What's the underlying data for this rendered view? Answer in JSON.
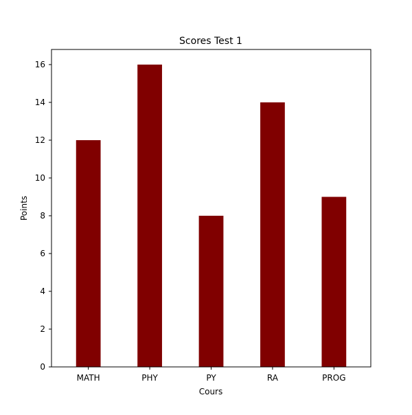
{
  "chart_data": {
    "type": "bar",
    "title": "Scores Test 1",
    "xlabel": "Cours",
    "ylabel": "Points",
    "categories": [
      "MATH",
      "PHY",
      "PY",
      "RA",
      "PROG"
    ],
    "values": [
      12,
      16,
      8,
      14,
      9
    ],
    "ylim": [
      0,
      16.8
    ],
    "yticks": [
      0,
      2,
      4,
      6,
      8,
      10,
      12,
      14,
      16
    ],
    "grid": false,
    "bar_color": "#800000"
  }
}
